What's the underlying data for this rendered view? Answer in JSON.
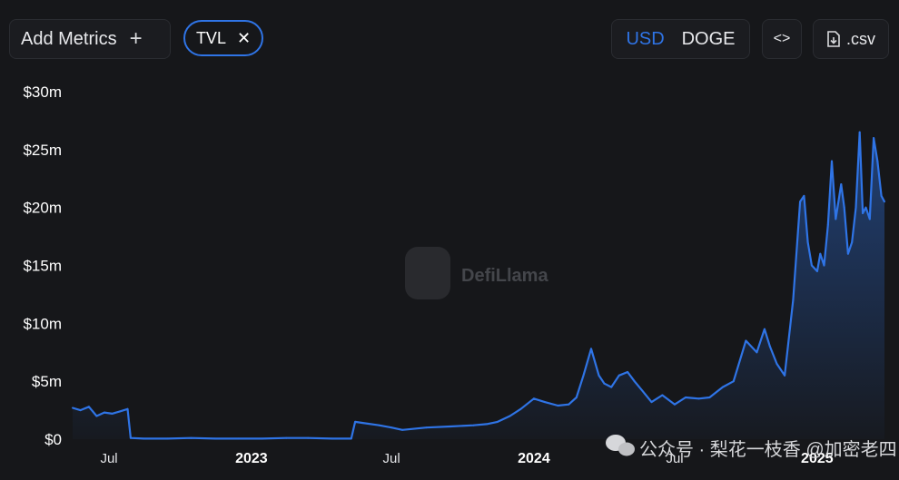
{
  "toolbar": {
    "add_metrics_label": "Add Metrics",
    "add_icon": "plus-icon",
    "metric_chip_label": "TVL",
    "remove_icon": "close-icon",
    "denominations": [
      "USD",
      "DOGE"
    ],
    "active_denomination": "USD",
    "embed_icon": "code-icon",
    "csv_icon": "download-icon",
    "csv_label": ".csv"
  },
  "watermark": {
    "text": "DefiLlama",
    "icon": "llama-logo-icon"
  },
  "source_watermark": {
    "text": "公众号 · 梨花一枝香 @加密老四",
    "icon": "wechat-icon"
  },
  "colors": {
    "background": "#16171a",
    "line": "#2f74e6",
    "accent": "#2f74e6"
  },
  "chart_data": {
    "type": "area",
    "title": "",
    "xlabel": "",
    "ylabel": "",
    "ylim": [
      0,
      30
    ],
    "y_unit": "$m",
    "ytick_labels": [
      "$0",
      "$5m",
      "$10m",
      "$15m",
      "$20m",
      "$25m",
      "$30m"
    ],
    "ytick_values": [
      0,
      5,
      10,
      15,
      20,
      25,
      30
    ],
    "xlim": [
      "2022-05-15",
      "2025-03-29"
    ],
    "xtick_labels": [
      "Jul",
      "2023",
      "Jul",
      "2024",
      "Jul",
      "2025"
    ],
    "xtick_values": [
      "2022-07-01",
      "2023-01-01",
      "2023-07-01",
      "2024-01-01",
      "2024-07-01",
      "2025-01-01"
    ],
    "grid": false,
    "legend": "none",
    "series": [
      {
        "name": "TVL",
        "x": [
          "2022-05-15",
          "2022-05-25",
          "2022-06-05",
          "2022-06-15",
          "2022-06-25",
          "2022-07-05",
          "2022-07-15",
          "2022-07-25",
          "2022-07-29",
          "2022-08-15",
          "2022-09-15",
          "2022-10-15",
          "2022-11-15",
          "2022-12-15",
          "2023-01-15",
          "2023-02-15",
          "2023-03-15",
          "2023-04-15",
          "2023-05-10",
          "2023-05-15",
          "2023-05-25",
          "2023-06-15",
          "2023-07-01",
          "2023-07-15",
          "2023-08-15",
          "2023-09-15",
          "2023-10-15",
          "2023-11-01",
          "2023-11-15",
          "2023-12-01",
          "2023-12-15",
          "2024-01-01",
          "2024-01-15",
          "2024-02-01",
          "2024-02-15",
          "2024-02-25",
          "2024-03-05",
          "2024-03-15",
          "2024-03-25",
          "2024-04-01",
          "2024-04-10",
          "2024-04-20",
          "2024-05-01",
          "2024-05-10",
          "2024-05-20",
          "2024-06-01",
          "2024-06-15",
          "2024-07-01",
          "2024-07-15",
          "2024-08-01",
          "2024-08-15",
          "2024-09-01",
          "2024-09-15",
          "2024-10-01",
          "2024-10-15",
          "2024-10-25",
          "2024-11-01",
          "2024-11-10",
          "2024-11-20",
          "2024-12-01",
          "2024-12-10",
          "2024-12-15",
          "2024-12-20",
          "2024-12-25",
          "2025-01-01",
          "2025-01-05",
          "2025-01-10",
          "2025-01-15",
          "2025-01-20",
          "2025-01-25",
          "2025-02-01",
          "2025-02-05",
          "2025-02-10",
          "2025-02-15",
          "2025-02-20",
          "2025-02-25",
          "2025-03-01",
          "2025-03-05",
          "2025-03-10",
          "2025-03-15",
          "2025-03-20",
          "2025-03-25",
          "2025-03-29"
        ],
        "values": [
          2.7,
          2.5,
          2.8,
          2.0,
          2.3,
          2.2,
          2.4,
          2.6,
          0.1,
          0.05,
          0.05,
          0.1,
          0.05,
          0.05,
          0.05,
          0.1,
          0.1,
          0.05,
          0.05,
          1.5,
          1.4,
          1.2,
          1.0,
          0.8,
          1.0,
          1.1,
          1.2,
          1.3,
          1.5,
          2.0,
          2.6,
          3.5,
          3.2,
          2.9,
          3.0,
          3.6,
          5.5,
          7.8,
          5.5,
          4.8,
          4.5,
          5.5,
          5.8,
          5.0,
          4.2,
          3.2,
          3.8,
          3.0,
          3.6,
          3.5,
          3.6,
          4.5,
          5.0,
          8.5,
          7.5,
          9.5,
          8.0,
          6.5,
          5.5,
          12.0,
          20.5,
          21.0,
          17.0,
          15.0,
          14.5,
          16.0,
          15.0,
          18.5,
          24.0,
          19.0,
          22.0,
          20.0,
          16.0,
          17.0,
          20.0,
          26.5,
          19.5,
          20.0,
          19.0,
          26.0,
          24.0,
          21.0,
          20.5
        ]
      }
    ]
  }
}
